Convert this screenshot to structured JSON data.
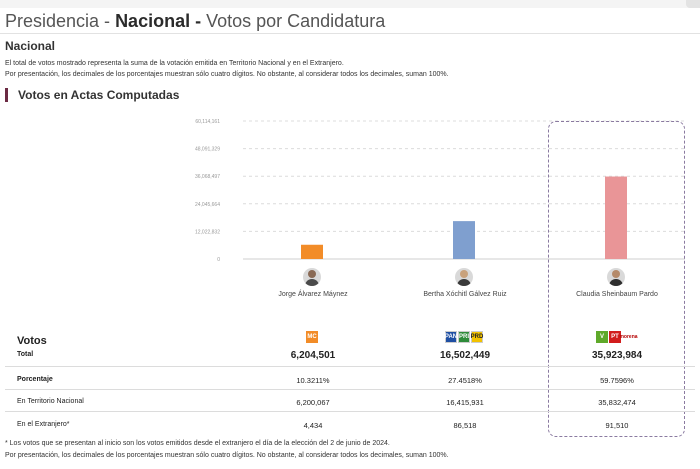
{
  "header": {
    "title_part1": "Presidencia - ",
    "title_part2": "Nacional -",
    "title_part3": " Votos por Candidatura",
    "subtitle": "Nacional",
    "note1": "El total de votos mostrado representa la suma de la votación emitida en Territorio Nacional y en el Extranjero.",
    "note2": "Por presentación, los decimales de los porcentajes muestran sólo cuatro dígitos. No obstante, al considerar todos los decimales, suman 100%."
  },
  "section_title": "Votos en Actas Computadas",
  "colors": {
    "accent": "#6b2a43",
    "bar_alvarez": "#f28c28",
    "bar_galvez": "#7f9fcf",
    "bar_sheinbaum": "#e99597"
  },
  "chart_data": {
    "type": "bar",
    "categories": [
      "Jorge Álvarez Máynez",
      "Bertha Xóchitl Gálvez Ruiz",
      "Claudia Sheinbaum Pardo"
    ],
    "values": [
      6204501,
      16502449,
      35923984
    ],
    "ylim": [
      0,
      60114161
    ],
    "yticks": [
      0,
      12022832,
      24045664,
      36068497,
      48091329,
      60114161
    ],
    "ytick_labels": [
      "0",
      "12,022,832",
      "24,045,664",
      "36,068,497",
      "48,091,329",
      "60,114,161"
    ],
    "grid": true,
    "highlighted_category": "Claudia Sheinbaum Pardo"
  },
  "candidates": [
    {
      "name": "Jorge Álvarez Máynez",
      "parties": [
        {
          "icon": "movimiento-ciudadano-logo",
          "abbr": "MC",
          "color": "#f28c28"
        }
      ],
      "total": "6,204,501",
      "porcentaje": "10.3211%",
      "territorio": "6,200,067",
      "extranjero": "4,434"
    },
    {
      "name": "Bertha Xóchitl Gálvez Ruiz",
      "parties": [
        {
          "icon": "pan-logo",
          "abbr": "PAN",
          "color": "#1f4fa3"
        },
        {
          "icon": "pri-logo",
          "abbr": "PRI",
          "color": "#2e8b3a"
        },
        {
          "icon": "prd-logo",
          "abbr": "PRD",
          "color": "#f2c200"
        }
      ],
      "total": "16,502,449",
      "porcentaje": "27.4518%",
      "territorio": "16,415,931",
      "extranjero": "86,518"
    },
    {
      "name": "Claudia Sheinbaum Pardo",
      "parties": [
        {
          "icon": "pvem-logo",
          "abbr": "V",
          "color": "#5fa92a"
        },
        {
          "icon": "pt-logo",
          "abbr": "PT",
          "color": "#d21d1d"
        },
        {
          "icon": "morena-logo",
          "abbr": "morena",
          "color": "#b50000"
        }
      ],
      "total": "35,923,984",
      "porcentaje": "59.7596%",
      "territorio": "35,832,474",
      "extranjero": "91,510"
    }
  ],
  "table": {
    "votes_label": "Votos",
    "row_total": "Total",
    "row_porcentaje": "Porcentaje",
    "row_territorio": "En Territorio Nacional",
    "row_extranjero": "En el Extranjero*"
  },
  "footer": {
    "note1": "* Los votos que se presentan al inicio son los votos emitidos desde el extranjero el día de la elección del 2 de junio de 2024.",
    "note2": "Por presentación, los decimales de los porcentajes muestran sólo cuatro dígitos. No obstante, al considerar todos los decimales, suman 100%."
  }
}
